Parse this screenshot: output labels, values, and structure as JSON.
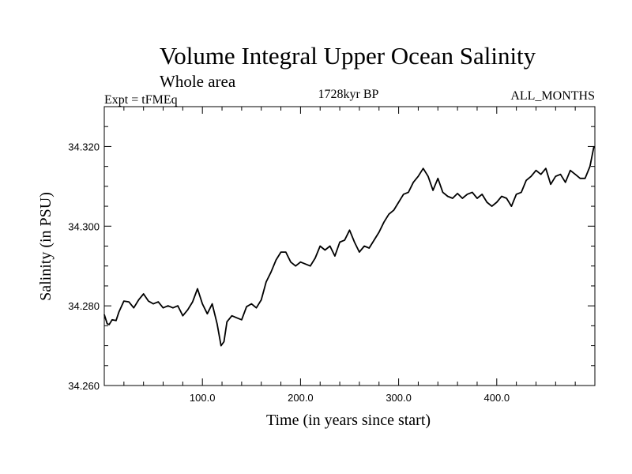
{
  "chart_data": {
    "type": "line",
    "title": "Volume Integral Upper Ocean Salinity",
    "subtitle": "Whole area",
    "experiment_label": "Expt = tFMEq",
    "period_label": "1728kyr BP",
    "months_label": "ALL_MONTHS",
    "xlabel": "Time (in years since start)",
    "ylabel": "Salinity (in PSU)",
    "xlim": [
      0,
      500
    ],
    "ylim": [
      34.26,
      34.33
    ],
    "xticks": [
      100,
      200,
      300,
      400
    ],
    "xtick_labels": [
      "100.0",
      "200.0",
      "300.0",
      "400.0"
    ],
    "yticks": [
      34.26,
      34.28,
      34.3,
      34.32
    ],
    "ytick_labels": [
      "34.260",
      "34.280",
      "34.300",
      "34.320"
    ],
    "grid": false,
    "series": [
      {
        "name": "Salinity",
        "color": "#000000",
        "x": [
          0,
          3,
          5,
          8,
          12,
          15,
          20,
          25,
          30,
          35,
          40,
          45,
          50,
          55,
          60,
          65,
          70,
          75,
          80,
          85,
          90,
          95,
          100,
          105,
          110,
          115,
          119,
          122,
          125,
          130,
          135,
          140,
          145,
          150,
          155,
          160,
          165,
          170,
          175,
          180,
          185,
          190,
          195,
          200,
          205,
          210,
          215,
          220,
          225,
          230,
          235,
          240,
          245,
          250,
          255,
          260,
          265,
          270,
          275,
          280,
          285,
          290,
          295,
          300,
          305,
          310,
          315,
          320,
          325,
          330,
          335,
          340,
          345,
          350,
          355,
          360,
          365,
          370,
          375,
          380,
          385,
          390,
          395,
          400,
          405,
          410,
          415,
          420,
          425,
          430,
          435,
          440,
          445,
          450,
          455,
          460,
          465,
          470,
          475,
          480,
          485,
          490,
          495,
          499
        ],
        "values": [
          34.2778,
          34.2755,
          34.2753,
          34.2765,
          34.2763,
          34.2785,
          34.2812,
          34.281,
          34.2795,
          34.2815,
          34.283,
          34.2812,
          34.2805,
          34.281,
          34.2795,
          34.28,
          34.2795,
          34.28,
          34.2775,
          34.279,
          34.281,
          34.2843,
          34.2805,
          34.278,
          34.2805,
          34.2755,
          34.27,
          34.271,
          34.276,
          34.2775,
          34.277,
          34.2765,
          34.2798,
          34.2805,
          34.2795,
          34.2815,
          34.286,
          34.2885,
          34.2915,
          34.2935,
          34.2935,
          34.291,
          34.29,
          34.291,
          34.2905,
          34.29,
          34.292,
          34.295,
          34.294,
          34.295,
          34.2925,
          34.296,
          34.2965,
          34.299,
          34.296,
          34.2935,
          34.295,
          34.2945,
          34.2965,
          34.2985,
          34.301,
          34.303,
          34.304,
          34.306,
          34.308,
          34.3085,
          34.311,
          34.3125,
          34.3145,
          34.3125,
          34.309,
          34.312,
          34.3085,
          34.3075,
          34.307,
          34.3082,
          34.307,
          34.308,
          34.3085,
          34.307,
          34.308,
          34.306,
          34.305,
          34.306,
          34.3075,
          34.307,
          34.305,
          34.308,
          34.3085,
          34.3115,
          34.3125,
          34.314,
          34.313,
          34.3145,
          34.3105,
          34.3125,
          34.313,
          34.311,
          34.314,
          34.313,
          34.312,
          34.312,
          34.315,
          34.32
        ]
      }
    ]
  }
}
